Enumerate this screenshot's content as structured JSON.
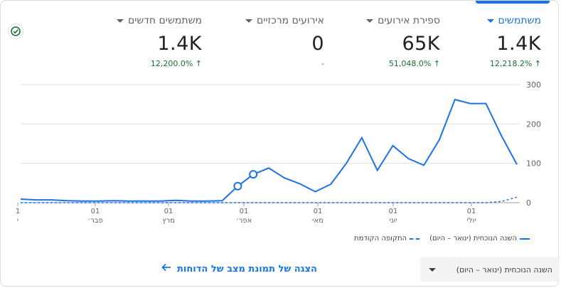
{
  "metrics": [
    {
      "label": "משתמשים",
      "value": "1.4K",
      "change": "12,218.2%",
      "trend": "up",
      "active": true
    },
    {
      "label": "ספירת אירועים",
      "value": "65K",
      "change": "51,048.0%",
      "trend": "up",
      "active": false
    },
    {
      "label": "אירועים מרכזיים",
      "value": "0",
      "change": "-",
      "trend": "none",
      "active": false
    },
    {
      "label": "משתמשים חדשים",
      "value": "1.4K",
      "change": "12,200.0%",
      "trend": "up",
      "active": false
    }
  ],
  "chart_data": {
    "type": "line",
    "x_ticks": [
      {
        "day": "01",
        "month": "יולי"
      },
      {
        "day": "01",
        "month": "יוני"
      },
      {
        "day": "01",
        "month": "מאי"
      },
      {
        "day": "01",
        "month": "אפר׳"
      },
      {
        "day": "01",
        "month": "מרץ"
      },
      {
        "day": "01",
        "month": "פבר׳"
      },
      {
        "day": "1",
        "month": "י"
      }
    ],
    "y_ticks": [
      "300",
      "200",
      "100",
      "0"
    ],
    "ylim": [
      0,
      300
    ],
    "series": [
      {
        "name": "השנה הנוכחית (ינואר – היום)",
        "style": "solid",
        "values": [
          9,
          7,
          7,
          5,
          4,
          4,
          5,
          4,
          4,
          4,
          6,
          4,
          4,
          5,
          42,
          72,
          88,
          63,
          48,
          28,
          47,
          100,
          165,
          82,
          145,
          112,
          95,
          160,
          262,
          252,
          252,
          170,
          97
        ]
      },
      {
        "name": "התקופה הקודמת",
        "style": "dashed",
        "values": [
          0,
          0,
          0,
          0,
          0,
          0,
          0,
          0,
          0,
          0,
          0,
          0,
          0,
          0,
          0,
          0,
          0,
          0,
          0,
          0,
          0,
          0,
          0,
          0,
          0,
          0,
          0,
          0,
          0,
          0,
          0,
          3,
          14
        ]
      }
    ],
    "grid": true
  },
  "legend": {
    "current": "השנה הנוכחית (ינואר – היום)",
    "previous": "התקופה הקודמת"
  },
  "period_select": {
    "value": "השנה הנוכחית (ינואר – היום)"
  },
  "footer_link": {
    "label": "הצגה של תמונת מצב של הדוחות"
  },
  "colors": {
    "accent": "#1a73e8",
    "positive": "#137333"
  },
  "icons": {
    "status": "check-circle-icon",
    "link_arrow": "arrow-left-icon",
    "dropdown": "caret-down-icon"
  }
}
